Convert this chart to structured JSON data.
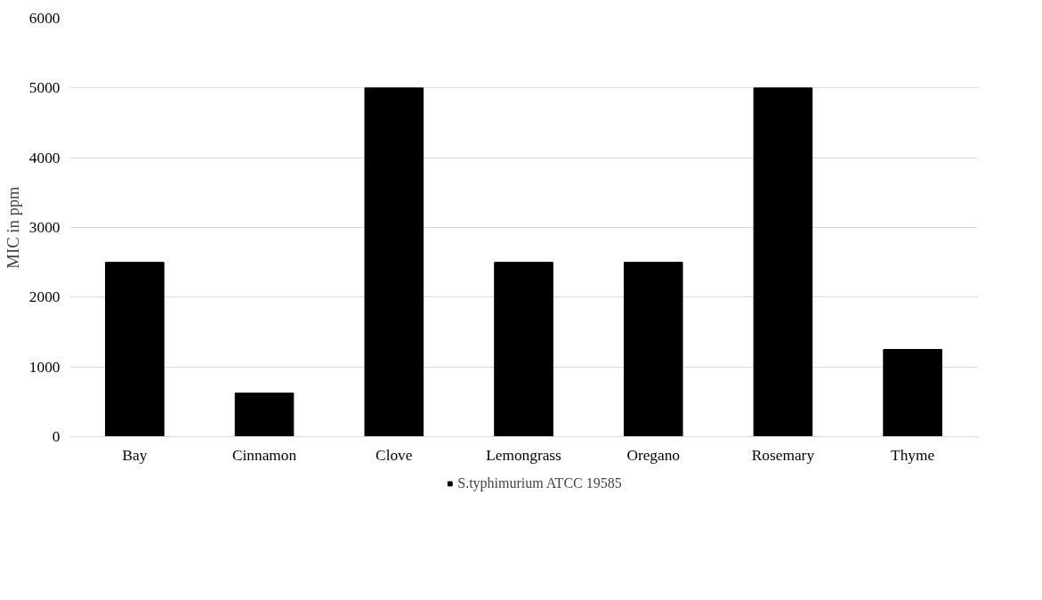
{
  "chart_data": {
    "type": "bar",
    "ylabel": "MIC in ppm",
    "categories": [
      "Bay",
      "Cinnamon",
      "Clove",
      "Lemongrass",
      "Oregano",
      "Rosemary",
      "Thyme"
    ],
    "series": [
      {
        "name": "S.typhimurium ATCC 19585",
        "color": "#000000",
        "values": [
          2500,
          625,
          5000,
          2500,
          2500,
          5000,
          1250
        ]
      }
    ],
    "ylim": [
      0,
      6000
    ],
    "yticks": [
      0,
      1000,
      2000,
      3000,
      4000,
      5000,
      6000
    ],
    "grid": "y",
    "legend": "bottom"
  }
}
